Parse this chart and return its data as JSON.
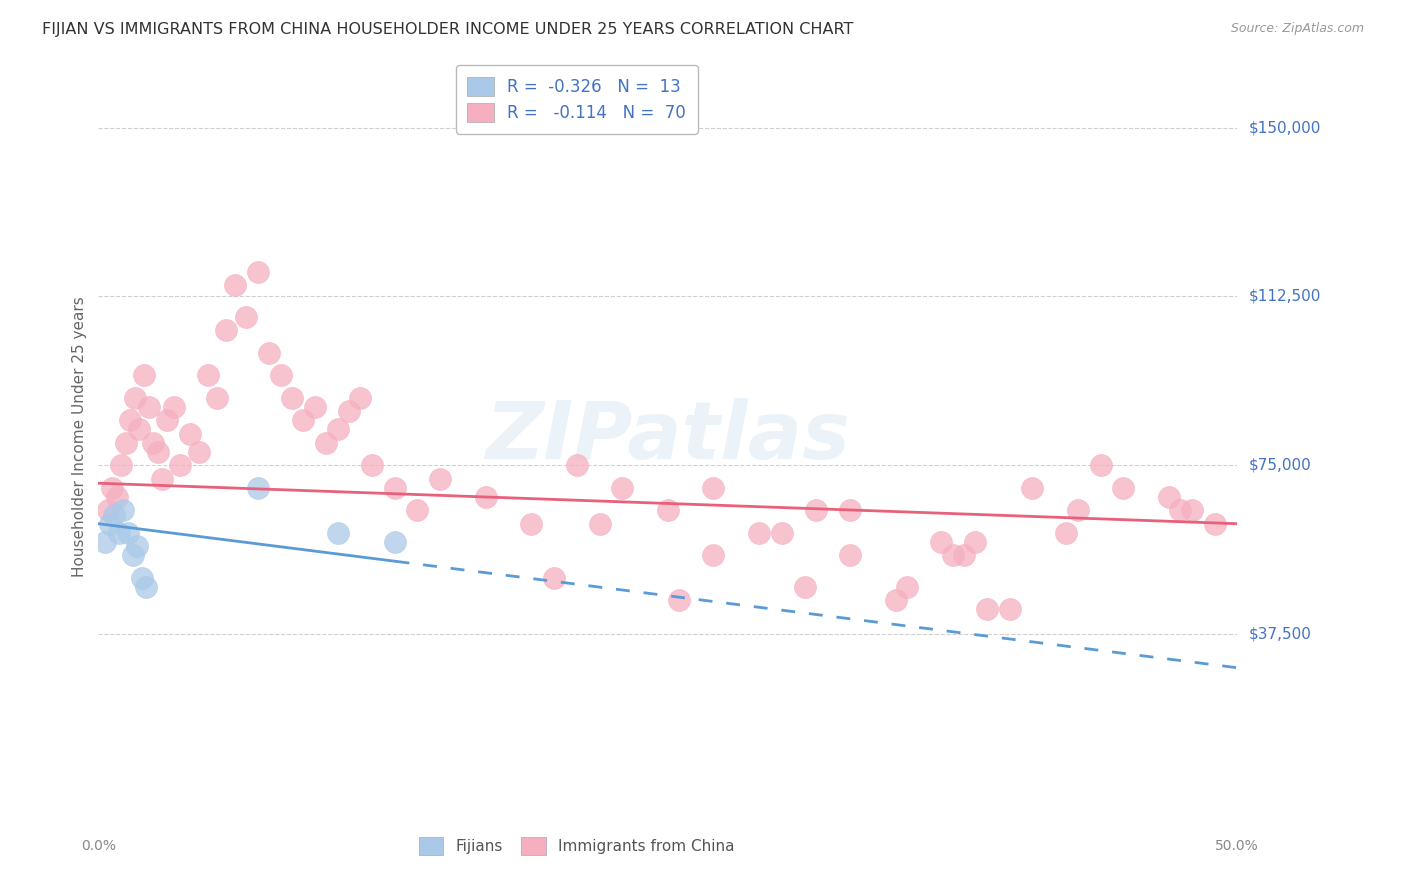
{
  "title": "FIJIAN VS IMMIGRANTS FROM CHINA HOUSEHOLDER INCOME UNDER 25 YEARS CORRELATION CHART",
  "source": "Source: ZipAtlas.com",
  "ylabel": "Householder Income Under 25 years",
  "ytick_labels": [
    "$37,500",
    "$75,000",
    "$112,500",
    "$150,000"
  ],
  "ytick_values": [
    37500,
    75000,
    112500,
    150000
  ],
  "xmin": 0.0,
  "xmax": 50.0,
  "ymin": 0,
  "ymax": 162500,
  "fijian_fill": "#aac9e8",
  "fijian_edge": "#aac9e8",
  "china_fill": "#f5afc0",
  "china_edge": "#f5afc0",
  "fijian_line_color": "#5b9bd5",
  "china_line_color": "#e8607a",
  "legend_label_fijian": "Fijians",
  "legend_label_china": "Immigrants from China",
  "fijian_R": "-0.326",
  "fijian_N": "13",
  "china_R": "-0.114",
  "china_N": "70",
  "watermark": "ZIPatlas",
  "fijian_x": [
    0.3,
    0.5,
    0.7,
    0.9,
    1.1,
    1.3,
    1.5,
    1.7,
    1.9,
    2.1,
    7.0,
    10.5,
    13.0
  ],
  "fijian_y": [
    58000,
    62000,
    64000,
    60000,
    65000,
    60000,
    55000,
    57000,
    50000,
    48000,
    70000,
    60000,
    58000
  ],
  "china_x": [
    0.4,
    0.6,
    0.8,
    1.0,
    1.2,
    1.4,
    1.6,
    1.8,
    2.0,
    2.2,
    2.4,
    2.6,
    2.8,
    3.0,
    3.3,
    3.6,
    4.0,
    4.4,
    4.8,
    5.2,
    5.6,
    6.0,
    6.5,
    7.0,
    7.5,
    8.0,
    8.5,
    9.0,
    9.5,
    10.0,
    10.5,
    11.0,
    11.5,
    12.0,
    13.0,
    14.0,
    15.0,
    17.0,
    19.0,
    21.0,
    23.0,
    25.0,
    27.0,
    29.0,
    31.0,
    33.0,
    35.0,
    37.0,
    38.0,
    39.0,
    41.0,
    43.0,
    45.0,
    47.0,
    49.0,
    30.0,
    35.5,
    40.0,
    44.0,
    48.0,
    20.0,
    25.5,
    31.5,
    37.5,
    42.5,
    47.5,
    22.0,
    27.0,
    33.0,
    38.5
  ],
  "china_y": [
    65000,
    70000,
    68000,
    75000,
    80000,
    85000,
    90000,
    83000,
    95000,
    88000,
    80000,
    78000,
    72000,
    85000,
    88000,
    75000,
    82000,
    78000,
    95000,
    90000,
    105000,
    115000,
    108000,
    118000,
    100000,
    95000,
    90000,
    85000,
    88000,
    80000,
    83000,
    87000,
    90000,
    75000,
    70000,
    65000,
    72000,
    68000,
    62000,
    75000,
    70000,
    65000,
    55000,
    60000,
    48000,
    65000,
    45000,
    58000,
    55000,
    43000,
    70000,
    65000,
    70000,
    68000,
    62000,
    60000,
    48000,
    43000,
    75000,
    65000,
    50000,
    45000,
    65000,
    55000,
    60000,
    65000,
    62000,
    70000,
    55000,
    58000
  ]
}
